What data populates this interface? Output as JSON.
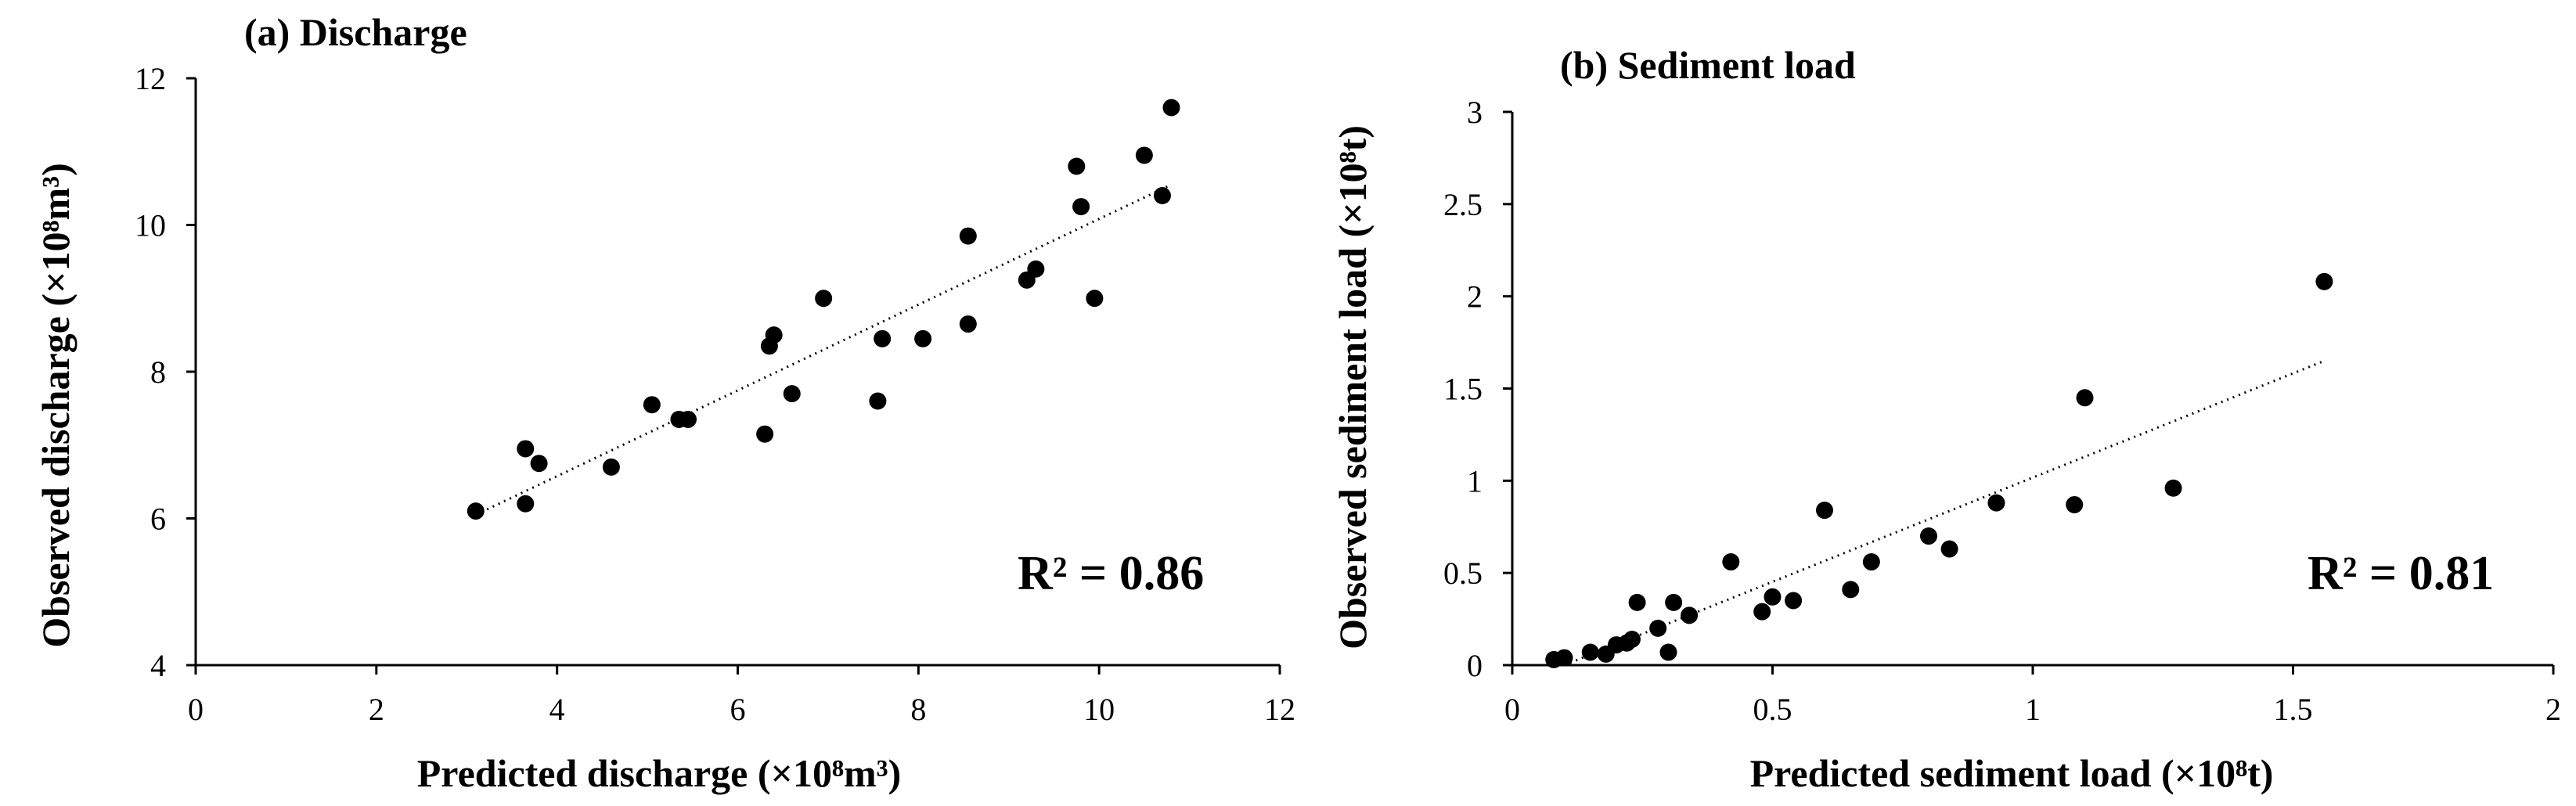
{
  "chart_data": [
    {
      "type": "scatter",
      "title": "(a) Discharge",
      "xlabel": "Predicted discharge (×10⁸m³)",
      "ylabel": "Observed discharge (×10⁸m³)",
      "xlim": [
        0,
        12
      ],
      "ylim": [
        4,
        12
      ],
      "xticks": [
        "0",
        "2",
        "4",
        "6",
        "8",
        "10",
        "12"
      ],
      "yticks": [
        "4",
        "6",
        "8",
        "10",
        "12"
      ],
      "r2_label": "R² = 0.86",
      "trendline": {
        "x": [
          3.1,
          10.8
        ],
        "y": [
          6.05,
          10.55
        ]
      },
      "points": {
        "x": [
          3.1,
          3.65,
          3.65,
          3.8,
          4.6,
          5.05,
          5.35,
          5.45,
          6.3,
          6.35,
          6.4,
          6.6,
          6.95,
          7.55,
          7.6,
          8.05,
          8.55,
          8.55,
          9.2,
          9.3,
          9.75,
          9.8,
          9.95,
          10.5,
          10.7,
          10.8
        ],
        "y": [
          6.1,
          6.2,
          6.95,
          6.75,
          6.7,
          7.55,
          7.35,
          7.35,
          7.15,
          8.35,
          8.5,
          7.7,
          9.0,
          7.6,
          8.45,
          8.45,
          9.85,
          8.65,
          9.25,
          9.4,
          10.8,
          10.25,
          9.0,
          10.95,
          10.4,
          11.6
        ]
      }
    },
    {
      "type": "scatter",
      "title": "(b) Sediment load",
      "xlabel": "Predicted sediment load (×10⁸t)",
      "ylabel": "Observed sediment load (×10⁸t)",
      "xlim": [
        0,
        2
      ],
      "ylim": [
        0,
        3
      ],
      "xticks": [
        "0",
        "0.5",
        "1",
        "1.5",
        "2"
      ],
      "yticks": [
        "0",
        "0.5",
        "1",
        "1.5",
        "2",
        "2.5",
        "3"
      ],
      "r2_label": "R² = 0.81",
      "trendline": {
        "x": [
          0.1,
          1.56
        ],
        "y": [
          0.0,
          1.65
        ]
      },
      "points": {
        "x": [
          0.08,
          0.1,
          0.15,
          0.18,
          0.2,
          0.22,
          0.23,
          0.24,
          0.28,
          0.3,
          0.31,
          0.34,
          0.42,
          0.48,
          0.5,
          0.54,
          0.6,
          0.65,
          0.69,
          0.8,
          0.84,
          0.93,
          1.08,
          1.1,
          1.27,
          1.56
        ],
        "y": [
          0.03,
          0.04,
          0.07,
          0.06,
          0.11,
          0.12,
          0.14,
          0.34,
          0.2,
          0.07,
          0.34,
          0.27,
          0.56,
          0.29,
          0.37,
          0.35,
          0.84,
          0.41,
          0.56,
          0.7,
          0.63,
          0.88,
          0.87,
          1.45,
          0.96,
          2.08
        ]
      }
    }
  ]
}
